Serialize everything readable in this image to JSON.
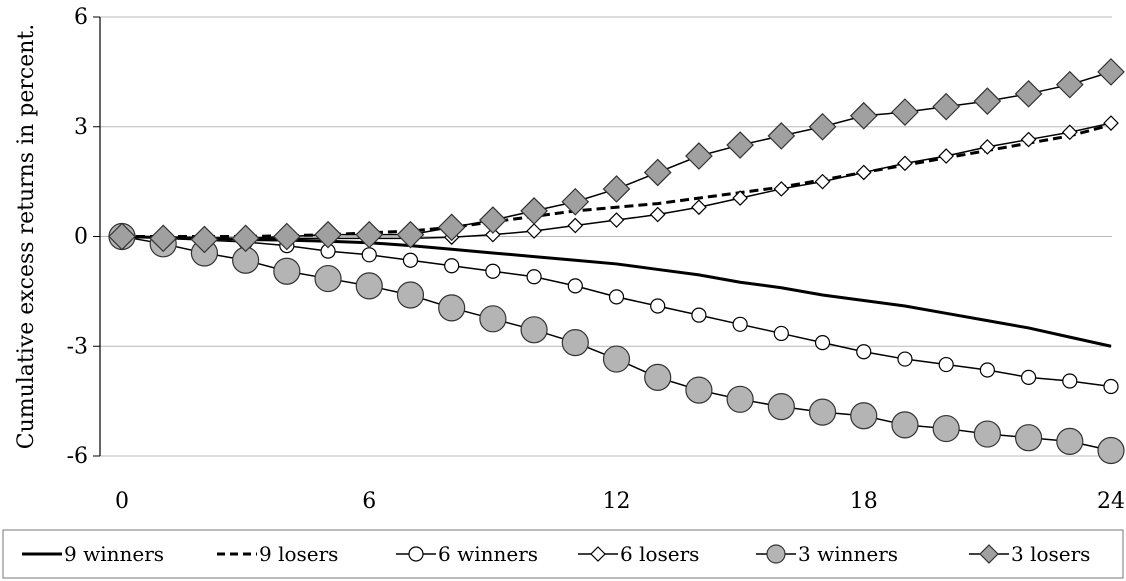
{
  "chart_data": {
    "type": "line",
    "title": "",
    "xlabel": "",
    "ylabel": "Cumulative excess returns in percent.",
    "xlim": [
      0,
      24
    ],
    "ylim": [
      -6,
      6
    ],
    "x_ticks": [
      0,
      6,
      12,
      18,
      24
    ],
    "y_ticks": [
      6,
      3,
      0,
      -3,
      -6
    ],
    "x_tick_labels": [
      "0",
      "6",
      "12",
      "18",
      "24"
    ],
    "y_tick_labels": [
      "6",
      "3",
      "0",
      "-3",
      "-6"
    ],
    "grid": "horizontal",
    "legend_position": "bottom",
    "x": [
      0,
      1,
      2,
      3,
      4,
      5,
      6,
      7,
      8,
      9,
      10,
      11,
      12,
      13,
      14,
      15,
      16,
      17,
      18,
      19,
      20,
      21,
      22,
      23,
      24
    ],
    "series": [
      {
        "name": "9 winners",
        "style": "solid",
        "marker": "none",
        "color": "#000000",
        "values": [
          0,
          -0.03,
          -0.05,
          -0.08,
          -0.1,
          -0.13,
          -0.17,
          -0.25,
          -0.35,
          -0.45,
          -0.55,
          -0.65,
          -0.75,
          -0.9,
          -1.05,
          -1.25,
          -1.4,
          -1.6,
          -1.75,
          -1.9,
          -2.1,
          -2.3,
          -2.5,
          -2.75,
          -3.0
        ]
      },
      {
        "name": "9 losers",
        "style": "dashed",
        "marker": "none",
        "color": "#000000",
        "values": [
          0,
          0,
          0,
          0,
          0.02,
          0.05,
          0.1,
          0.15,
          0.25,
          0.4,
          0.55,
          0.7,
          0.8,
          0.9,
          1.05,
          1.2,
          1.35,
          1.55,
          1.75,
          1.95,
          2.15,
          2.35,
          2.55,
          2.75,
          3.05
        ]
      },
      {
        "name": "6 winners",
        "style": "solid",
        "marker": "circle-open",
        "color": "#000000",
        "values": [
          0,
          -0.05,
          -0.1,
          -0.15,
          -0.25,
          -0.4,
          -0.5,
          -0.65,
          -0.8,
          -0.95,
          -1.1,
          -1.35,
          -1.65,
          -1.9,
          -2.15,
          -2.4,
          -2.65,
          -2.9,
          -3.15,
          -3.35,
          -3.5,
          -3.65,
          -3.85,
          -3.95,
          -4.1
        ]
      },
      {
        "name": "6 losers",
        "style": "solid",
        "marker": "diamond-open",
        "color": "#000000",
        "values": [
          0,
          -0.02,
          -0.03,
          -0.05,
          -0.05,
          -0.05,
          -0.05,
          -0.05,
          -0.02,
          0.05,
          0.15,
          0.3,
          0.45,
          0.6,
          0.8,
          1.05,
          1.3,
          1.5,
          1.75,
          2.0,
          2.2,
          2.45,
          2.65,
          2.85,
          3.1
        ]
      },
      {
        "name": "3 winners",
        "style": "solid",
        "marker": "circle-filled",
        "color": "#000000",
        "fill": "#b4b4b4",
        "values": [
          0,
          -0.2,
          -0.45,
          -0.65,
          -0.95,
          -1.15,
          -1.35,
          -1.6,
          -1.95,
          -2.25,
          -2.55,
          -2.9,
          -3.35,
          -3.85,
          -4.2,
          -4.45,
          -4.65,
          -4.8,
          -4.9,
          -5.15,
          -5.25,
          -5.4,
          -5.5,
          -5.6,
          -5.85
        ]
      },
      {
        "name": "3 losers",
        "style": "solid",
        "marker": "diamond-filled",
        "color": "#000000",
        "fill": "#a0a0a0",
        "values": [
          0,
          -0.05,
          -0.08,
          -0.05,
          0.0,
          0.05,
          0.05,
          0.05,
          0.25,
          0.45,
          0.7,
          0.95,
          1.3,
          1.75,
          2.2,
          2.5,
          2.75,
          3.0,
          3.3,
          3.4,
          3.55,
          3.7,
          3.9,
          4.15,
          4.5
        ]
      }
    ]
  }
}
